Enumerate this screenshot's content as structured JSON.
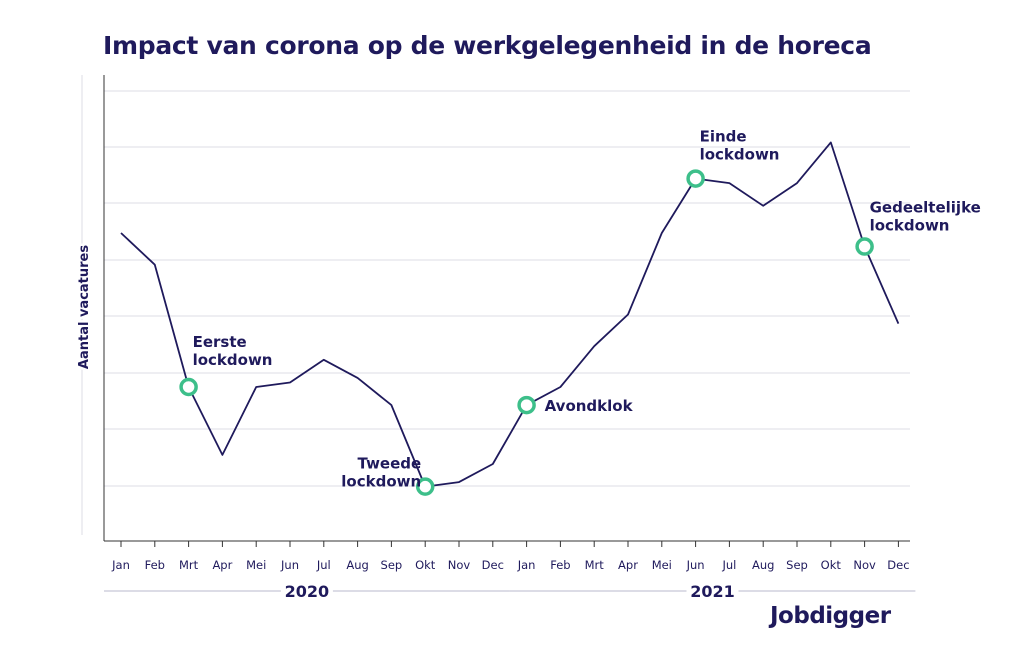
{
  "title": "Impact van corona op de werkgelegenheid in de horeca",
  "brand": "Jobdigger",
  "colors": {
    "line": "#1f1a5c",
    "marker": "#3dbf8a",
    "grid": "#dcdce6",
    "text": "#1f1a5c"
  },
  "chart_data": {
    "type": "line",
    "title": "Impact van corona op de werkgelegenheid in de horeca",
    "ylabel": "Aantal vacatures",
    "xlabel": "",
    "y_ticks_labeled": false,
    "grid": true,
    "ylim": [
      0,
      100
    ],
    "categories": [
      "Jan",
      "Feb",
      "Mrt",
      "Apr",
      "Mei",
      "Jun",
      "Jul",
      "Aug",
      "Sep",
      "Okt",
      "Nov",
      "Dec",
      "Jan",
      "Feb",
      "Mrt",
      "Apr",
      "Mei",
      "Jun",
      "Jul",
      "Aug",
      "Sep",
      "Okt",
      "Nov",
      "Dec"
    ],
    "years": [
      {
        "label": "2020",
        "from": 0,
        "to": 11
      },
      {
        "label": "2021",
        "from": 12,
        "to": 23
      }
    ],
    "series": [
      {
        "values": [
          68,
          61,
          34,
          19,
          34,
          35,
          40,
          36,
          30,
          12,
          13,
          17,
          30,
          34,
          43,
          50,
          68,
          80,
          79,
          74,
          79,
          88,
          65,
          48
        ]
      }
    ],
    "annotations": [
      {
        "index": 2,
        "lines": [
          "Eerste",
          "lockdown"
        ]
      },
      {
        "index": 9,
        "lines": [
          "Tweede",
          "lockdown"
        ]
      },
      {
        "index": 12,
        "lines": [
          "Avondklok"
        ]
      },
      {
        "index": 17,
        "lines": [
          "Einde",
          "lockdown"
        ]
      },
      {
        "index": 22,
        "lines": [
          "Gedeeltelijke",
          "lockdown"
        ]
      }
    ]
  }
}
